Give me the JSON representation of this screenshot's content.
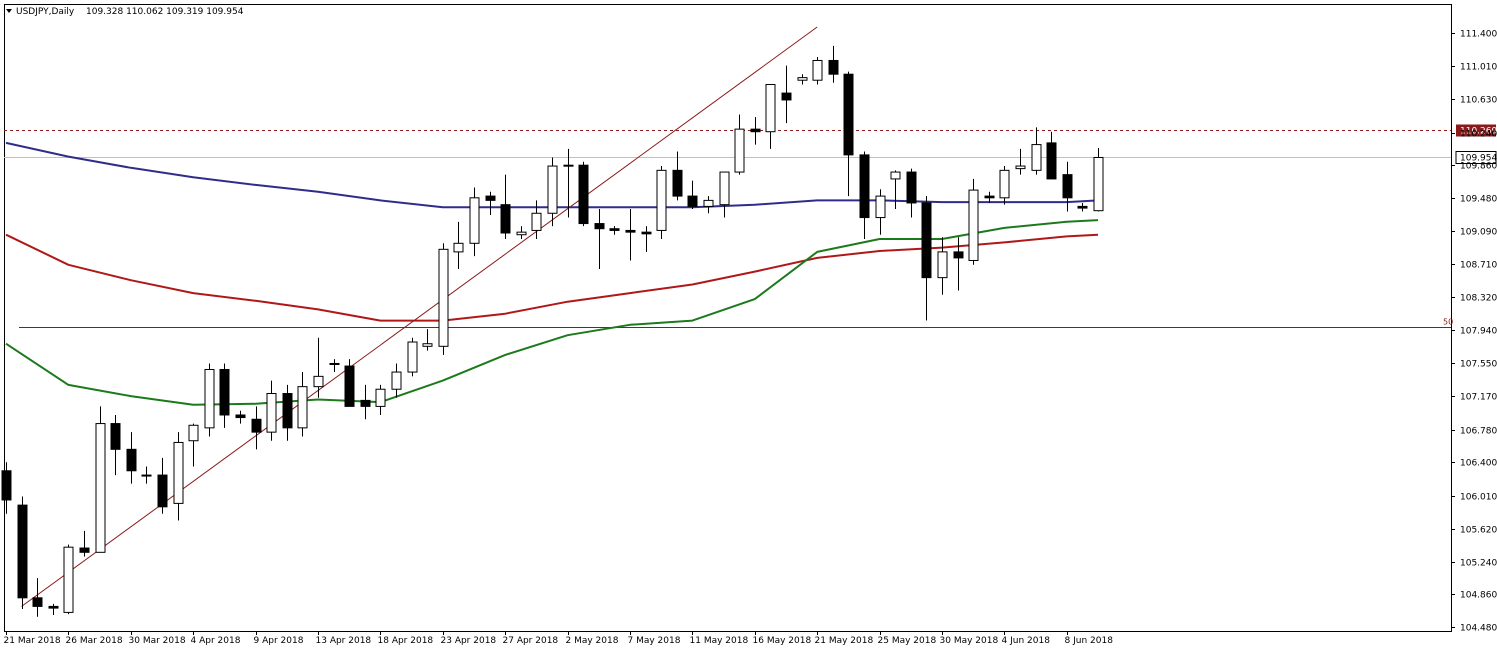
{
  "header": {
    "symbol_timeframe": "USDJPY,Daily",
    "ohlc": "109.328 110.062 109.319 109.954"
  },
  "chart_data": {
    "type": "candlestick",
    "ylim": [
      104.48,
      111.6
    ],
    "price_ticks": [
      "111.400",
      "111.010",
      "110.630",
      "110.240",
      "109.860",
      "109.480",
      "109.090",
      "108.710",
      "108.320",
      "107.940",
      "107.550",
      "107.170",
      "106.780",
      "106.400",
      "106.010",
      "105.620",
      "105.240",
      "104.860",
      "104.480"
    ],
    "date_labels": [
      {
        "index": 0,
        "label": "21 Mar 2018"
      },
      {
        "index": 4,
        "label": "26 Mar 2018"
      },
      {
        "index": 8,
        "label": "30 Mar 2018"
      },
      {
        "index": 12,
        "label": "4 Apr 2018"
      },
      {
        "index": 16,
        "label": "9 Apr 2018"
      },
      {
        "index": 20,
        "label": "13 Apr 2018"
      },
      {
        "index": 24,
        "label": "18 Apr 2018"
      },
      {
        "index": 28,
        "label": "23 Apr 2018"
      },
      {
        "index": 32,
        "label": "27 Apr 2018"
      },
      {
        "index": 36,
        "label": "2 May 2018"
      },
      {
        "index": 40,
        "label": "7 May 2018"
      },
      {
        "index": 44,
        "label": "11 May 2018"
      },
      {
        "index": 48,
        "label": "16 May 2018"
      },
      {
        "index": 52,
        "label": "21 May 2018"
      },
      {
        "index": 56,
        "label": "25 May 2018"
      },
      {
        "index": 60,
        "label": "30 May 2018"
      },
      {
        "index": 64,
        "label": "4 Jun 2018"
      },
      {
        "index": 68,
        "label": "8 Jun 2018"
      }
    ],
    "candles": [
      [
        106.3,
        106.4,
        105.8,
        105.96
      ],
      [
        105.9,
        106.0,
        104.69,
        104.82
      ],
      [
        104.82,
        105.05,
        104.6,
        104.72
      ],
      [
        104.72,
        104.75,
        104.62,
        104.7
      ],
      [
        104.65,
        105.44,
        104.63,
        105.41
      ],
      [
        105.4,
        105.6,
        105.3,
        105.35
      ],
      [
        105.35,
        107.05,
        105.35,
        106.85
      ],
      [
        106.85,
        106.95,
        106.25,
        106.55
      ],
      [
        106.55,
        106.75,
        106.15,
        106.3
      ],
      [
        106.25,
        106.35,
        106.15,
        106.25
      ],
      [
        106.25,
        106.45,
        105.8,
        105.88
      ],
      [
        105.92,
        106.75,
        105.72,
        106.63
      ],
      [
        106.65,
        106.85,
        106.35,
        106.83
      ],
      [
        106.8,
        107.55,
        106.7,
        107.48
      ],
      [
        107.48,
        107.55,
        106.8,
        106.95
      ],
      [
        106.95,
        107.0,
        106.85,
        106.92
      ],
      [
        106.9,
        107.05,
        106.55,
        106.75
      ],
      [
        106.75,
        107.35,
        106.65,
        107.2
      ],
      [
        107.2,
        107.3,
        106.65,
        106.8
      ],
      [
        106.8,
        107.45,
        106.7,
        107.28
      ],
      [
        107.28,
        107.85,
        107.15,
        107.4
      ],
      [
        107.55,
        107.6,
        107.45,
        107.55
      ],
      [
        107.52,
        107.6,
        107.05,
        107.05
      ],
      [
        107.12,
        107.3,
        106.9,
        107.05
      ],
      [
        107.05,
        107.3,
        106.95,
        107.25
      ],
      [
        107.25,
        107.55,
        107.15,
        107.45
      ],
      [
        107.45,
        107.85,
        107.4,
        107.8
      ],
      [
        107.75,
        107.95,
        107.7,
        107.78
      ],
      [
        107.75,
        108.95,
        107.65,
        108.88
      ],
      [
        108.85,
        109.2,
        108.65,
        108.95
      ],
      [
        108.95,
        109.6,
        108.8,
        109.48
      ],
      [
        109.5,
        109.55,
        109.28,
        109.45
      ],
      [
        109.4,
        109.75,
        109.0,
        109.07
      ],
      [
        109.05,
        109.15,
        109.0,
        109.08
      ],
      [
        109.1,
        109.45,
        109.0,
        109.3
      ],
      [
        109.3,
        109.95,
        109.15,
        109.85
      ],
      [
        109.85,
        110.05,
        109.25,
        109.86
      ],
      [
        109.86,
        109.9,
        109.15,
        109.18
      ],
      [
        109.18,
        109.35,
        108.65,
        109.12
      ],
      [
        109.12,
        109.15,
        109.05,
        109.1
      ],
      [
        109.1,
        109.35,
        108.75,
        109.08
      ],
      [
        109.08,
        109.15,
        108.85,
        109.06
      ],
      [
        109.1,
        109.85,
        109.0,
        109.8
      ],
      [
        109.8,
        110.02,
        109.45,
        109.5
      ],
      [
        109.5,
        109.68,
        109.35,
        109.38
      ],
      [
        109.38,
        109.5,
        109.3,
        109.45
      ],
      [
        109.4,
        109.78,
        109.25,
        109.78
      ],
      [
        109.78,
        110.45,
        109.75,
        110.28
      ],
      [
        110.28,
        110.42,
        110.1,
        110.25
      ],
      [
        110.25,
        110.8,
        110.05,
        110.8
      ],
      [
        110.7,
        111.02,
        110.35,
        110.62
      ],
      [
        110.85,
        110.92,
        110.8,
        110.88
      ],
      [
        110.85,
        111.12,
        110.8,
        111.08
      ],
      [
        111.08,
        111.25,
        110.82,
        110.92
      ],
      [
        110.92,
        110.95,
        109.5,
        109.98
      ],
      [
        109.98,
        110.02,
        109.0,
        109.25
      ],
      [
        109.25,
        109.58,
        109.05,
        109.5
      ],
      [
        109.7,
        109.8,
        109.35,
        109.78
      ],
      [
        109.78,
        109.82,
        109.25,
        109.42
      ],
      [
        109.42,
        109.5,
        108.05,
        108.55
      ],
      [
        108.55,
        109.02,
        108.35,
        108.85
      ],
      [
        108.85,
        109.02,
        108.4,
        108.78
      ],
      [
        108.75,
        109.7,
        108.7,
        109.57
      ],
      [
        109.5,
        109.55,
        109.42,
        109.48
      ],
      [
        109.48,
        109.85,
        109.4,
        109.8
      ],
      [
        109.82,
        110.05,
        109.75,
        109.85
      ],
      [
        109.8,
        110.3,
        109.75,
        110.1
      ],
      [
        110.12,
        110.25,
        109.7,
        109.7
      ],
      [
        109.75,
        109.9,
        109.32,
        109.48
      ],
      [
        109.38,
        109.42,
        109.32,
        109.36
      ],
      [
        109.33,
        110.06,
        109.32,
        109.95
      ]
    ],
    "series": [
      {
        "color": "#2e2e8a",
        "x": [
          0,
          4,
          8,
          12,
          16,
          20,
          24,
          28,
          32,
          36,
          40,
          44,
          48,
          52,
          56,
          60,
          64,
          68,
          70
        ],
        "values": [
          110.12,
          109.96,
          109.83,
          109.72,
          109.63,
          109.55,
          109.45,
          109.37,
          109.37,
          109.37,
          109.37,
          109.37,
          109.4,
          109.45,
          109.45,
          109.43,
          109.43,
          109.43,
          109.45
        ]
      },
      {
        "color": "#b01818",
        "x": [
          0,
          4,
          8,
          12,
          16,
          20,
          24,
          28,
          32,
          36,
          40,
          44,
          48,
          52,
          56,
          60,
          64,
          68,
          70
        ],
        "values": [
          109.05,
          108.7,
          108.52,
          108.37,
          108.28,
          108.18,
          108.05,
          108.05,
          108.13,
          108.27,
          108.37,
          108.47,
          108.62,
          108.78,
          108.86,
          108.9,
          108.96,
          109.03,
          109.05
        ]
      },
      {
        "color": "#1c7a1c",
        "x": [
          0,
          4,
          8,
          12,
          16,
          20,
          24,
          28,
          32,
          36,
          40,
          44,
          48,
          52,
          56,
          60,
          64,
          68,
          70
        ],
        "values": [
          107.78,
          107.3,
          107.17,
          107.07,
          107.08,
          107.13,
          107.1,
          107.35,
          107.65,
          107.88,
          108.0,
          108.05,
          108.3,
          108.85,
          109.0,
          109.0,
          109.13,
          109.2,
          109.22
        ]
      }
    ],
    "trendline": {
      "color": "#8b1a1a",
      "from": {
        "index": 1,
        "price": 104.72
      },
      "to": {
        "index": 52,
        "price": 111.47
      }
    },
    "fib_level": {
      "label": "50",
      "price": 107.98,
      "color": "#8b1a1a"
    },
    "resistance_level": {
      "label": "110.269",
      "price": 110.269,
      "color": "#8b1a1a"
    },
    "current_price": {
      "label": "109.954",
      "price": 109.954
    }
  }
}
